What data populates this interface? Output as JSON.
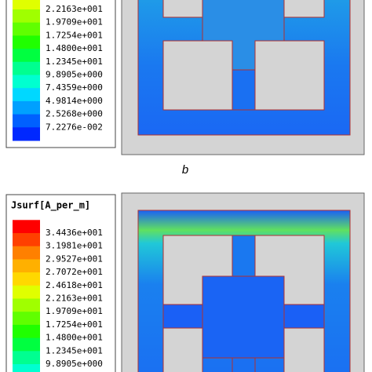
{
  "panel_a": {
    "legend_labels": [
      "2.2163e+001",
      "1.9709e+001",
      "1.7254e+001",
      "1.4800e+001",
      "1.2345e+001",
      "9.8905e+000",
      "7.4359e+000",
      "4.9814e+000",
      "2.5268e+000",
      "7.2276e-002"
    ]
  },
  "caption": "b",
  "panel_b": {
    "legend_title": "Jsurf[A_per_m]",
    "legend_labels": [
      "3.4436e+001",
      "3.1981e+001",
      "2.9527e+001",
      "2.7072e+001",
      "2.4618e+001",
      "2.2163e+001",
      "1.9709e+001",
      "1.7254e+001",
      "1.4800e+001",
      "1.2345e+001",
      "9.8905e+000"
    ]
  }
}
